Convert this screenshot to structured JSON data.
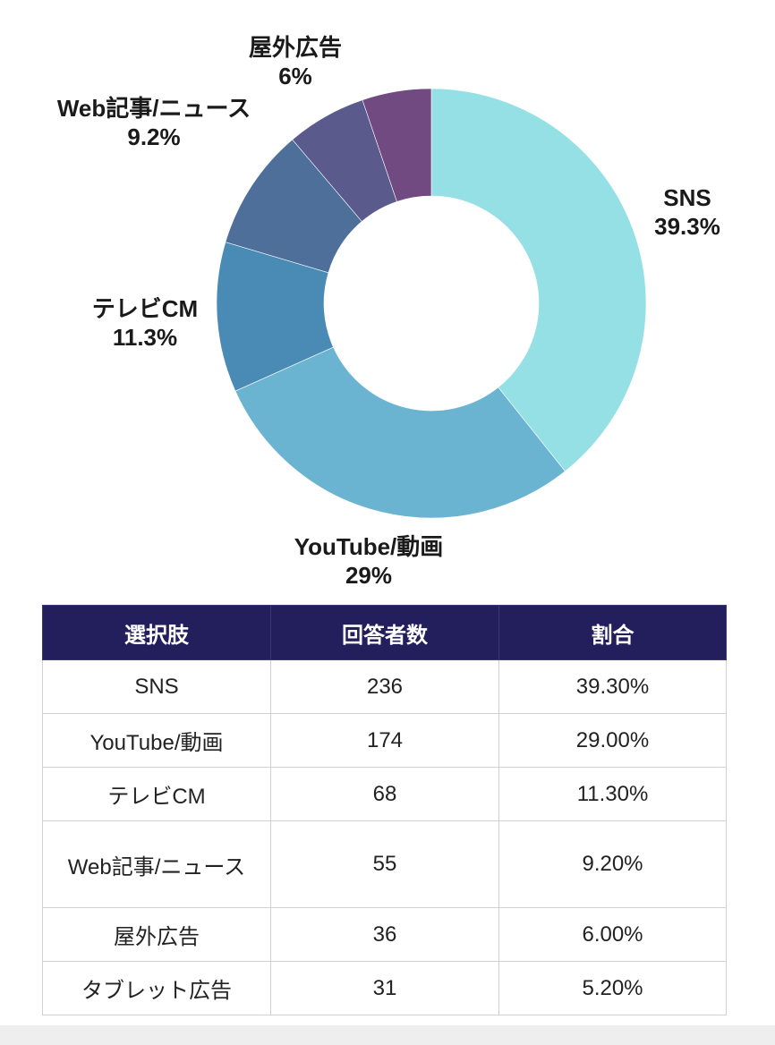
{
  "chart_data": {
    "type": "pie",
    "donut": true,
    "slices": [
      {
        "label": "SNS",
        "value": 39.3,
        "value_label": "39.3%",
        "color": "#95e0e5"
      },
      {
        "label": "YouTube/動画",
        "value": 29,
        "value_label": "29%",
        "color": "#6bb4d1"
      },
      {
        "label": "テレビCM",
        "value": 11.3,
        "value_label": "11.3%",
        "color": "#4a8bb6"
      },
      {
        "label": "Web記事/ニュース",
        "value": 9.2,
        "value_label": "9.2%",
        "color": "#4d6f9a"
      },
      {
        "label": "屋外広告",
        "value": 6,
        "value_label": "6%",
        "color": "#5b5a8d"
      },
      {
        "label": "",
        "value": 5.2,
        "value_label": "",
        "color": "#704a80"
      }
    ]
  },
  "table": {
    "headers": [
      "選択肢",
      "回答者数",
      "割合"
    ],
    "rows": [
      [
        "SNS",
        "236",
        "39.30%"
      ],
      [
        "YouTube/動画",
        "174",
        "29.00%"
      ],
      [
        "テレビCM",
        "68",
        "11.30%"
      ],
      [
        "Web記事/ニュース",
        "55",
        "9.20%"
      ],
      [
        "屋外広告",
        "36",
        "6.00%"
      ],
      [
        "タブレット広告",
        "31",
        "5.20%"
      ]
    ],
    "header_bg": "#231f5c"
  }
}
